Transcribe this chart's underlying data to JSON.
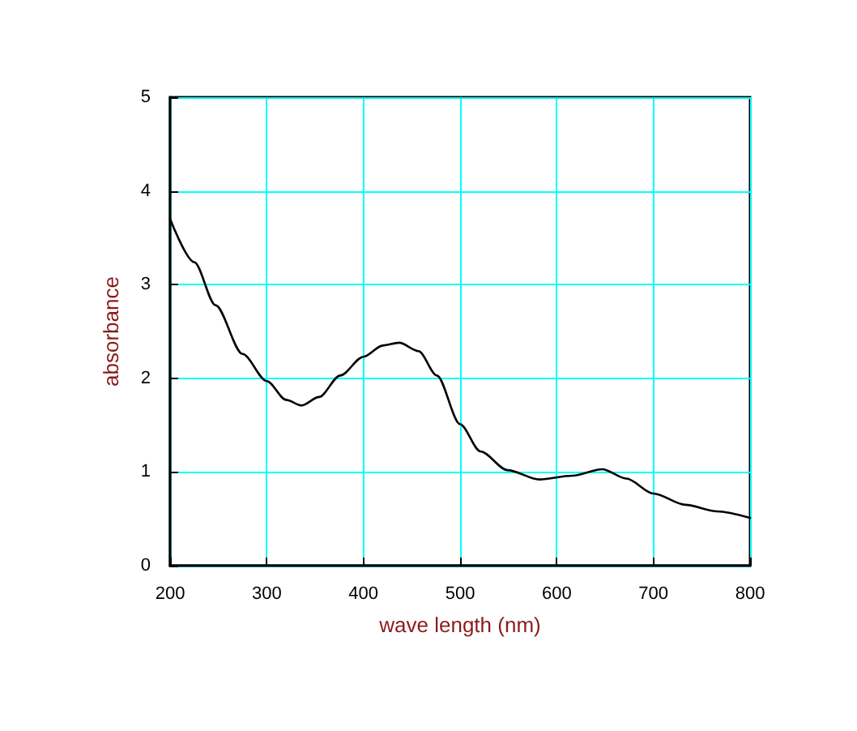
{
  "chart_data": {
    "type": "line",
    "xlabel": "wave length (nm)",
    "ylabel": "absorbance",
    "xlim": [
      200,
      800
    ],
    "xticks": [
      200,
      300,
      400,
      500,
      600,
      700,
      800
    ],
    "ylim": [
      0,
      5
    ],
    "yticks": [
      0,
      1,
      2,
      3,
      4,
      5
    ],
    "grid": true,
    "marker": "none",
    "line_style": "solid",
    "series": [
      {
        "color": "#000000",
        "x": [
          200,
          225,
          247,
          275,
          300,
          320,
          336,
          354,
          376,
          400,
          420,
          437,
          457,
          476,
          500,
          521,
          549,
          582,
          616,
          647,
          672,
          700,
          733,
          766,
          800
        ],
        "values": [
          3.7,
          3.24,
          2.78,
          2.26,
          1.97,
          1.77,
          1.71,
          1.8,
          2.03,
          2.23,
          2.35,
          2.38,
          2.29,
          2.03,
          1.51,
          1.22,
          1.02,
          0.92,
          0.96,
          1.03,
          0.93,
          0.77,
          0.65,
          0.58,
          0.51
        ]
      }
    ]
  }
}
